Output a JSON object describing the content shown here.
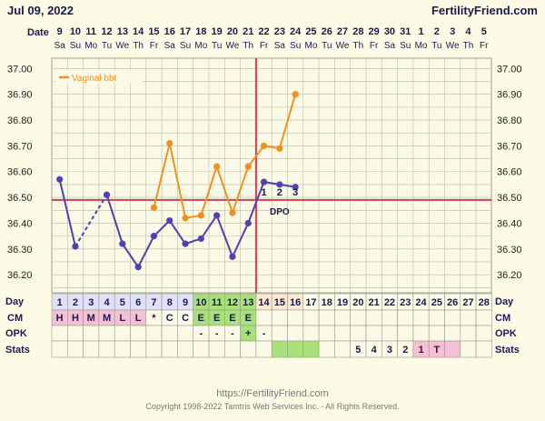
{
  "header": {
    "date": "Jul 09, 2022",
    "site": "FertilityFriend.com",
    "date_row_label": "Date"
  },
  "calendar": {
    "dates": [
      "9",
      "10",
      "11",
      "12",
      "13",
      "14",
      "15",
      "16",
      "17",
      "18",
      "19",
      "20",
      "21",
      "22",
      "23",
      "24",
      "25",
      "26",
      "27",
      "28",
      "29",
      "30",
      "31",
      "1",
      "2",
      "3",
      "4",
      "5"
    ],
    "weekdays": [
      "Sa",
      "Su",
      "Mo",
      "Tu",
      "We",
      "Th",
      "Fr",
      "Sa",
      "Su",
      "Mo",
      "Tu",
      "We",
      "Th",
      "Fr",
      "Sa",
      "Su",
      "Mo",
      "Tu",
      "We",
      "Th",
      "Fr",
      "Sa",
      "Su",
      "Mo",
      "Tu",
      "We",
      "Th",
      "Fr"
    ]
  },
  "chart_data": {
    "type": "line",
    "legend": {
      "label": "Vaginal bbt",
      "position": "top-left"
    },
    "y_ticks": [
      "37.00",
      "36.90",
      "36.80",
      "36.70",
      "36.60",
      "36.50",
      "36.40",
      "36.30",
      "36.20"
    ],
    "ylim": [
      36.13,
      37.04
    ],
    "coverline": 36.49,
    "ovulation_day": 13,
    "series": [
      {
        "color": "#5040b0",
        "points": [
          {
            "day": 1,
            "temp": 36.57
          },
          {
            "day": 2,
            "temp": 36.31
          },
          {
            "day": 4,
            "temp": 36.51
          },
          {
            "day": 5,
            "temp": 36.32
          },
          {
            "day": 6,
            "temp": 36.23
          },
          {
            "day": 7,
            "temp": 36.35
          },
          {
            "day": 8,
            "temp": 36.41
          },
          {
            "day": 9,
            "temp": 36.32
          },
          {
            "day": 10,
            "temp": 36.34
          },
          {
            "day": 11,
            "temp": 36.43
          },
          {
            "day": 12,
            "temp": 36.27
          },
          {
            "day": 13,
            "temp": 36.4
          },
          {
            "day": 14,
            "temp": 36.56
          },
          {
            "day": 15,
            "temp": 36.55
          },
          {
            "day": 16,
            "temp": 36.54
          }
        ],
        "dashed_segments": [
          [
            2,
            4
          ]
        ]
      },
      {
        "name": "Vaginal bbt",
        "color": "#f0901e",
        "points": [
          {
            "day": 7,
            "temp": 36.46
          },
          {
            "day": 8,
            "temp": 36.71
          },
          {
            "day": 9,
            "temp": 36.42
          },
          {
            "day": 10,
            "temp": 36.43
          },
          {
            "day": 11,
            "temp": 36.62
          },
          {
            "day": 12,
            "temp": 36.44
          },
          {
            "day": 13,
            "temp": 36.62
          },
          {
            "day": 14,
            "temp": 36.7
          },
          {
            "day": 15,
            "temp": 36.69
          },
          {
            "day": 16,
            "temp": 36.9
          }
        ]
      }
    ],
    "dpo_labels": [
      {
        "day": 14,
        "text": "1"
      },
      {
        "day": 15,
        "text": "2"
      },
      {
        "day": 16,
        "text": "3"
      }
    ],
    "dpo_caption": "DPO"
  },
  "rows": {
    "day_label": "Day",
    "cm_label": "CM",
    "opk_label": "OPK",
    "stats_label": "Stats",
    "days": [
      "1",
      "2",
      "3",
      "4",
      "5",
      "6",
      "7",
      "8",
      "9",
      "10",
      "11",
      "12",
      "13",
      "14",
      "15",
      "16",
      "17",
      "18",
      "19",
      "20",
      "21",
      "22",
      "23",
      "24",
      "25",
      "26",
      "27",
      "28"
    ],
    "day_bg": [
      "#e0e0f8",
      "#e0e0f8",
      "#e0e0f8",
      "#e0e0f8",
      "#e0e0f8",
      "#e0e0f8",
      "#e0e0f8",
      "#e0e0f8",
      "#e0e0f8",
      "#a8e07a",
      "#a8e07a",
      "#a8e07a",
      "#a8e07a",
      "#fbe7d2",
      "#fbe7d2",
      "#fbe7d2",
      "",
      "",
      "",
      "",
      "",
      "",
      "",
      "",
      "",
      "",
      "",
      ""
    ],
    "cm": [
      "H",
      "H",
      "M",
      "M",
      "L",
      "L",
      "*",
      "C",
      "C",
      "E",
      "E",
      "E",
      "E",
      "",
      "",
      "",
      "",
      "",
      "",
      "",
      "",
      "",
      "",
      "",
      "",
      "",
      "",
      ""
    ],
    "cm_bg": [
      "#f6c0d4",
      "#f6c0d4",
      "#f6c0d4",
      "#f6c0d4",
      "#f6c0d4",
      "#f6c0d4",
      "",
      "",
      "",
      "#a8e07a",
      "#a8e07a",
      "#a8e07a",
      "#a8e07a",
      "",
      "",
      "",
      "",
      "",
      "",
      "",
      "",
      "",
      "",
      "",
      "",
      "",
      "",
      ""
    ],
    "opk": [
      "",
      "",
      "",
      "",
      "",
      "",
      "",
      "",
      "",
      "-",
      "-",
      "-",
      "+",
      "-",
      "",
      "",
      "",
      "",
      "",
      "",
      "",
      "",
      "",
      "",
      "",
      "",
      "",
      ""
    ],
    "opk_bg": [
      "",
      "",
      "",
      "",
      "",
      "",
      "",
      "",
      "",
      "",
      "",
      "",
      "#a8e07a",
      "",
      "",
      "",
      "",
      "",
      "",
      "",
      "",
      "",
      "",
      "",
      "",
      "",
      "",
      ""
    ],
    "stats": [
      "",
      "",
      "",
      "",
      "",
      "",
      "",
      "",
      "",
      "",
      "",
      "",
      "",
      "",
      "",
      "",
      "",
      "",
      "",
      "5",
      "4",
      "3",
      "2",
      "1",
      "T",
      "",
      "",
      ""
    ],
    "stats_bg": [
      "",
      "",
      "",
      "",
      "",
      "",
      "",
      "",
      "",
      "",
      "",
      "",
      "",
      "",
      "#a8e07a",
      "#a8e07a",
      "#a8e07a",
      "",
      "",
      "",
      "",
      "",
      "",
      "#f6c0d4",
      "#f6c0d4",
      "#f6c0d4",
      "",
      ""
    ]
  },
  "footer": {
    "url": "https://FertilityFriend.com",
    "copyright": "Copyright 1998-2022 Tamtris Web Services Inc. - All Rights Reserved."
  },
  "colors": {
    "grid_bg": "#fafae6",
    "grid_line": "#bbbbaa",
    "coverline": "#d04050",
    "ovulation_line": "#d04050",
    "navy": "#1a1a50"
  }
}
